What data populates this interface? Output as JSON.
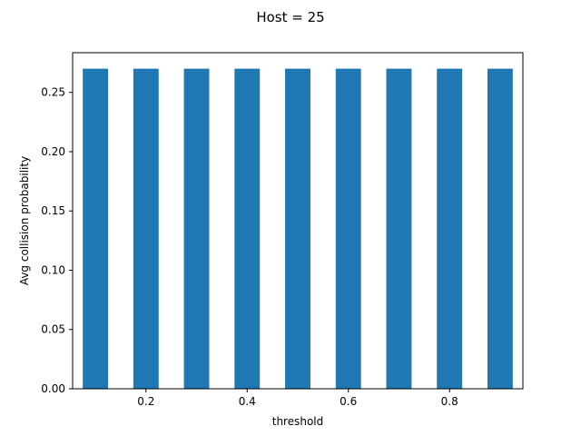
{
  "chart_data": {
    "type": "bar",
    "title": "Host = 25",
    "xlabel": "threshold",
    "ylabel": "Avg collision probability",
    "x": [
      0.1,
      0.2,
      0.3,
      0.4,
      0.5,
      0.6,
      0.7,
      0.8,
      0.9
    ],
    "values": [
      0.27,
      0.27,
      0.27,
      0.27,
      0.27,
      0.27,
      0.27,
      0.27,
      0.27
    ],
    "bar_width": 0.05,
    "xlim": [
      0.055,
      0.945
    ],
    "ylim": [
      0,
      0.2835
    ],
    "xticks": [
      0.2,
      0.4,
      0.6,
      0.8
    ],
    "xtick_labels": [
      "0.2",
      "0.4",
      "0.6",
      "0.8"
    ],
    "yticks": [
      0,
      0.05,
      0.1,
      0.15,
      0.2,
      0.25
    ],
    "ytick_labels": [
      "0.00",
      "0.05",
      "0.10",
      "0.15",
      "0.20",
      "0.25"
    ],
    "bar_color": "#1f77b4",
    "grid": false,
    "legend": "none"
  }
}
